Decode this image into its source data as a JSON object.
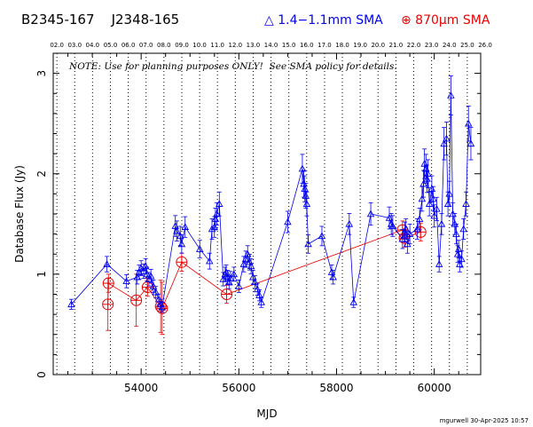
{
  "header": {
    "source_names": "B2345-167    J2348-165",
    "legend_blue": "△ 1.4−1.1mm SMA",
    "legend_red": "⊕ 870μm SMA"
  },
  "note": "NOTE: Use for planning purposes ONLY!  See SMA policy for details.",
  "footer": "mgurwell 30-Apr-2025 10:57",
  "colors": {
    "blue": "#0000ee",
    "red": "#ee0000",
    "text": "#000000"
  },
  "chart_data": {
    "type": "scatter",
    "title": "B2345-167    J2348-165",
    "xlabel": "MJD",
    "ylabel": "Database Flux (Jy)",
    "xlim": [
      52200,
      60950
    ],
    "ylim": [
      0,
      3.2
    ],
    "xticks": [
      54000,
      56000,
      58000,
      60000
    ],
    "yticks": [
      0,
      1,
      2,
      3
    ],
    "top_axis_labels": [
      "02.0",
      "03.0",
      "04.0",
      "05.0",
      "06.0",
      "07.0",
      "08.0",
      "09.0",
      "10.0",
      "11.0",
      "12.0",
      "13.0",
      "14.0",
      "15.0",
      "16.0",
      "17.0",
      "18.0",
      "19.0",
      "20.0",
      "21.0",
      "22.0",
      "23.0",
      "24.0",
      "25.0",
      "26.0"
    ],
    "top_axis_mjd": [
      52275,
      52640,
      53005,
      53371,
      53736,
      54101,
      54466,
      54832,
      55197,
      55562,
      55927,
      56293,
      56658,
      57023,
      57388,
      57754,
      58119,
      58484,
      58849,
      59215,
      59580,
      59945,
      60310,
      60676,
      61041
    ],
    "grid": "dotted vertical lines at year boundaries",
    "legend": "top",
    "series": [
      {
        "name": "1.4−1.1mm SMA",
        "marker": "triangle",
        "color": "#0000ee",
        "x": [
          52570,
          53300,
          53700,
          53920,
          53960,
          54000,
          54050,
          54090,
          54120,
          54160,
          54200,
          54250,
          54300,
          54360,
          54400,
          54430,
          54700,
          54730,
          54800,
          54830,
          54900,
          55200,
          55400,
          55450,
          55500,
          55520,
          55550,
          55600,
          55680,
          55720,
          55740,
          55770,
          55800,
          55830,
          55900,
          56000,
          56100,
          56140,
          56180,
          56220,
          56250,
          56290,
          56330,
          56380,
          56420,
          56460,
          57000,
          57300,
          57330,
          57350,
          57370,
          57390,
          57420,
          57700,
          57900,
          57930,
          58260,
          58350,
          58700,
          59080,
          59120,
          59150,
          59350,
          59400,
          59420,
          59450,
          59500,
          59650,
          59700,
          59750,
          59780,
          59800,
          59830,
          59850,
          59870,
          59900,
          59950,
          59980,
          60000,
          60050,
          60100,
          60150,
          60200,
          60250,
          60280,
          60310,
          60340,
          60380,
          60420,
          60450,
          60480,
          60500,
          60520,
          60560,
          60600,
          60650,
          60700,
          60750
        ],
        "y": [
          0.7,
          1.1,
          0.93,
          0.97,
          1.02,
          1.06,
          1.03,
          1.08,
          1.0,
          0.95,
          0.98,
          0.88,
          0.82,
          0.75,
          0.7,
          0.67,
          1.48,
          1.43,
          1.38,
          1.3,
          1.47,
          1.25,
          1.13,
          1.45,
          1.47,
          1.55,
          1.6,
          1.7,
          0.95,
          1.0,
          1.02,
          0.97,
          0.92,
          0.96,
          1.0,
          0.88,
          1.1,
          1.15,
          1.2,
          1.12,
          1.08,
          0.97,
          0.92,
          0.85,
          0.79,
          0.72,
          1.52,
          2.05,
          1.9,
          1.85,
          1.78,
          1.7,
          1.3,
          1.38,
          1.02,
          0.97,
          1.5,
          0.72,
          1.6,
          1.56,
          1.5,
          1.48,
          1.35,
          1.42,
          1.45,
          1.3,
          1.4,
          1.45,
          1.55,
          1.75,
          1.9,
          2.1,
          2.05,
          1.95,
          2.0,
          1.7,
          1.85,
          1.75,
          1.58,
          1.65,
          1.1,
          1.5,
          2.3,
          2.35,
          1.7,
          1.8,
          2.78,
          1.6,
          1.5,
          1.4,
          1.2,
          1.25,
          1.1,
          1.15,
          1.45,
          1.7,
          2.5,
          2.3
        ]
      },
      {
        "name": "870μm SMA",
        "marker": "circle-plus",
        "color": "#ee0000",
        "x": [
          53320,
          53330,
          53900,
          54130,
          54400,
          54430,
          54830,
          55750,
          59350,
          59390,
          59720
        ],
        "y": [
          0.7,
          0.91,
          0.74,
          0.87,
          0.68,
          0.66,
          1.12,
          0.8,
          1.44,
          1.36,
          1.42
        ]
      }
    ]
  }
}
